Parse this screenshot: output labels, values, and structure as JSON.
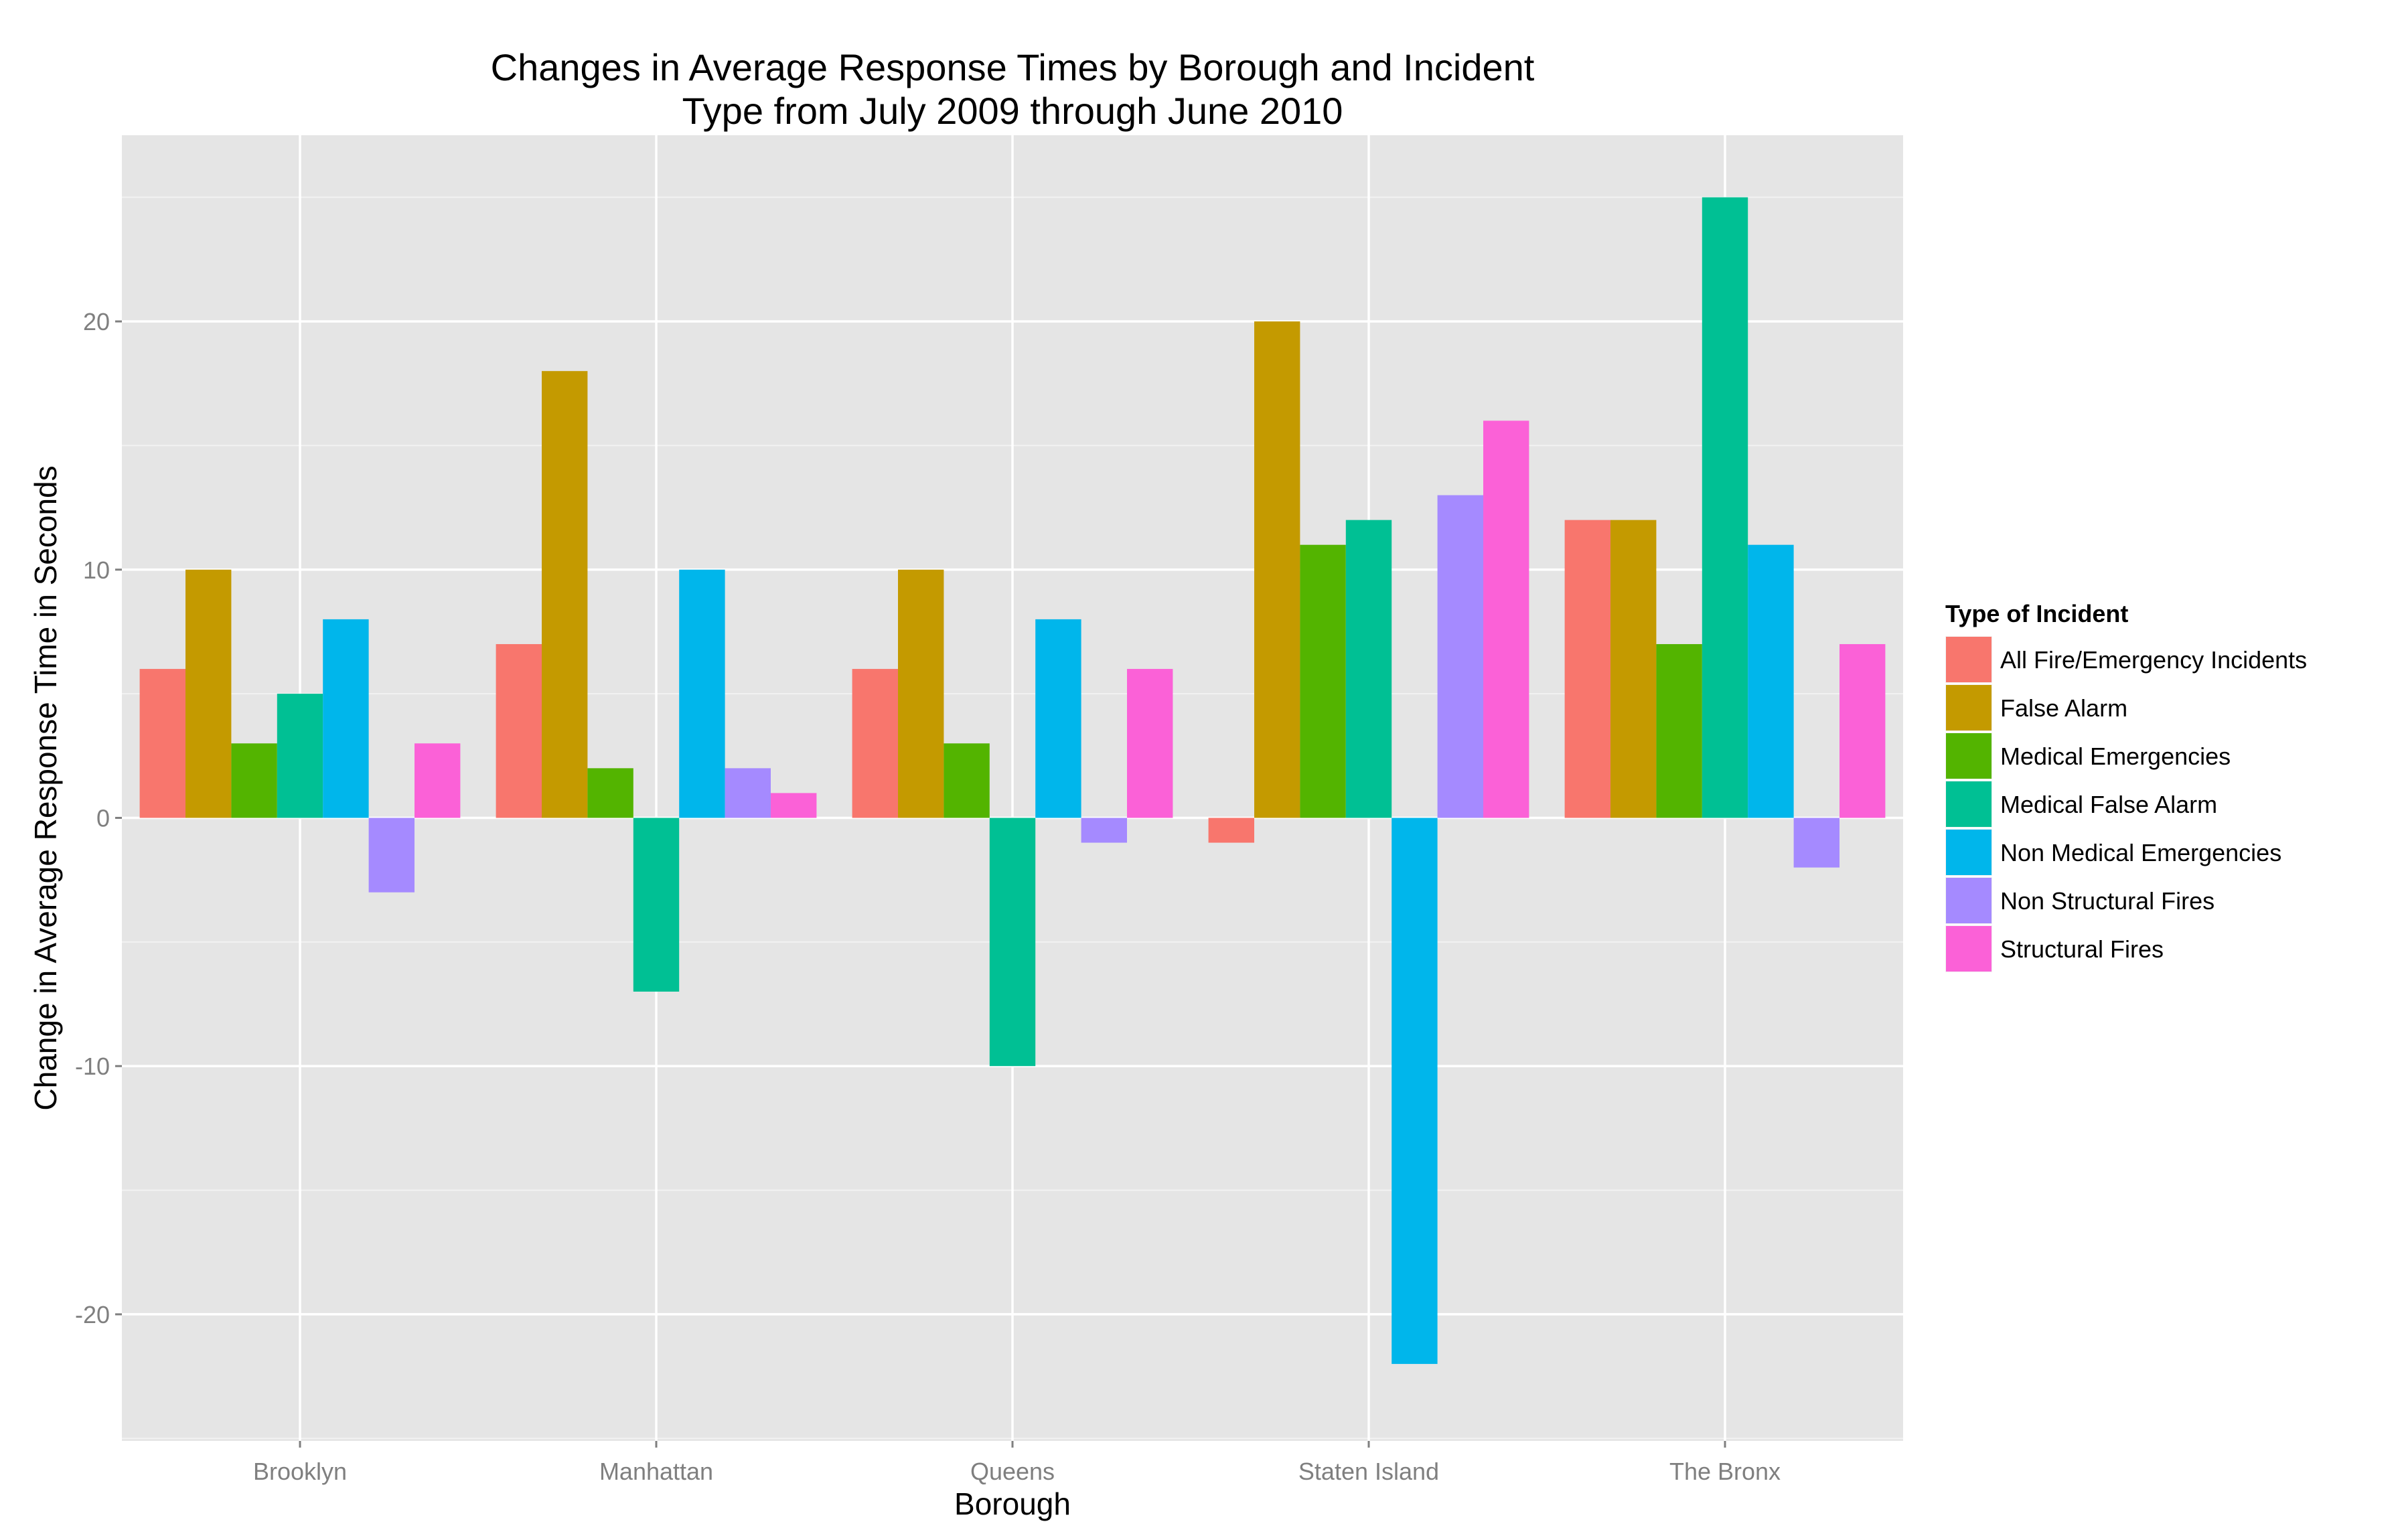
{
  "chart_data": {
    "type": "bar",
    "title": "Changes in Average Response Times by Borough and Incident Type from July 2009 through June 2010",
    "title_lines": [
      "Changes in Average Response Times by Borough and Incident",
      "Type from July 2009 through June 2010"
    ],
    "xlabel": "Borough",
    "ylabel": "Change in Average Response Time in Seconds",
    "categories": [
      "Brooklyn",
      "Manhattan",
      "Queens",
      "Staten Island",
      "The Bronx"
    ],
    "ylim": [
      -25.1,
      27.5
    ],
    "yticks": [
      -20,
      -10,
      0,
      10,
      20
    ],
    "grid": true,
    "panel_background": "#e5e5e5",
    "grid_color": "#ffffff",
    "legend": {
      "title": "Type of Incident",
      "placement": "right"
    },
    "series": [
      {
        "name": "All Fire/Emergency Incidents",
        "color": "#f8766d",
        "values": [
          6,
          7,
          6,
          -1,
          12
        ]
      },
      {
        "name": "False Alarm",
        "color": "#c49a00",
        "values": [
          10,
          18,
          10,
          20,
          12
        ]
      },
      {
        "name": "Medical Emergencies",
        "color": "#53b400",
        "values": [
          3,
          2,
          3,
          11,
          7
        ]
      },
      {
        "name": "Medical False Alarm",
        "color": "#00c094",
        "values": [
          5,
          -7,
          -10,
          12,
          25
        ]
      },
      {
        "name": "Non Medical Emergencies",
        "color": "#00b6eb",
        "values": [
          8,
          10,
          8,
          -22,
          11
        ]
      },
      {
        "name": "Non Structural Fires",
        "color": "#a58aff",
        "values": [
          -3,
          2,
          -1,
          13,
          -2
        ]
      },
      {
        "name": "Structural Fires",
        "color": "#fb61d7",
        "values": [
          3,
          1,
          6,
          16,
          7
        ]
      }
    ]
  }
}
